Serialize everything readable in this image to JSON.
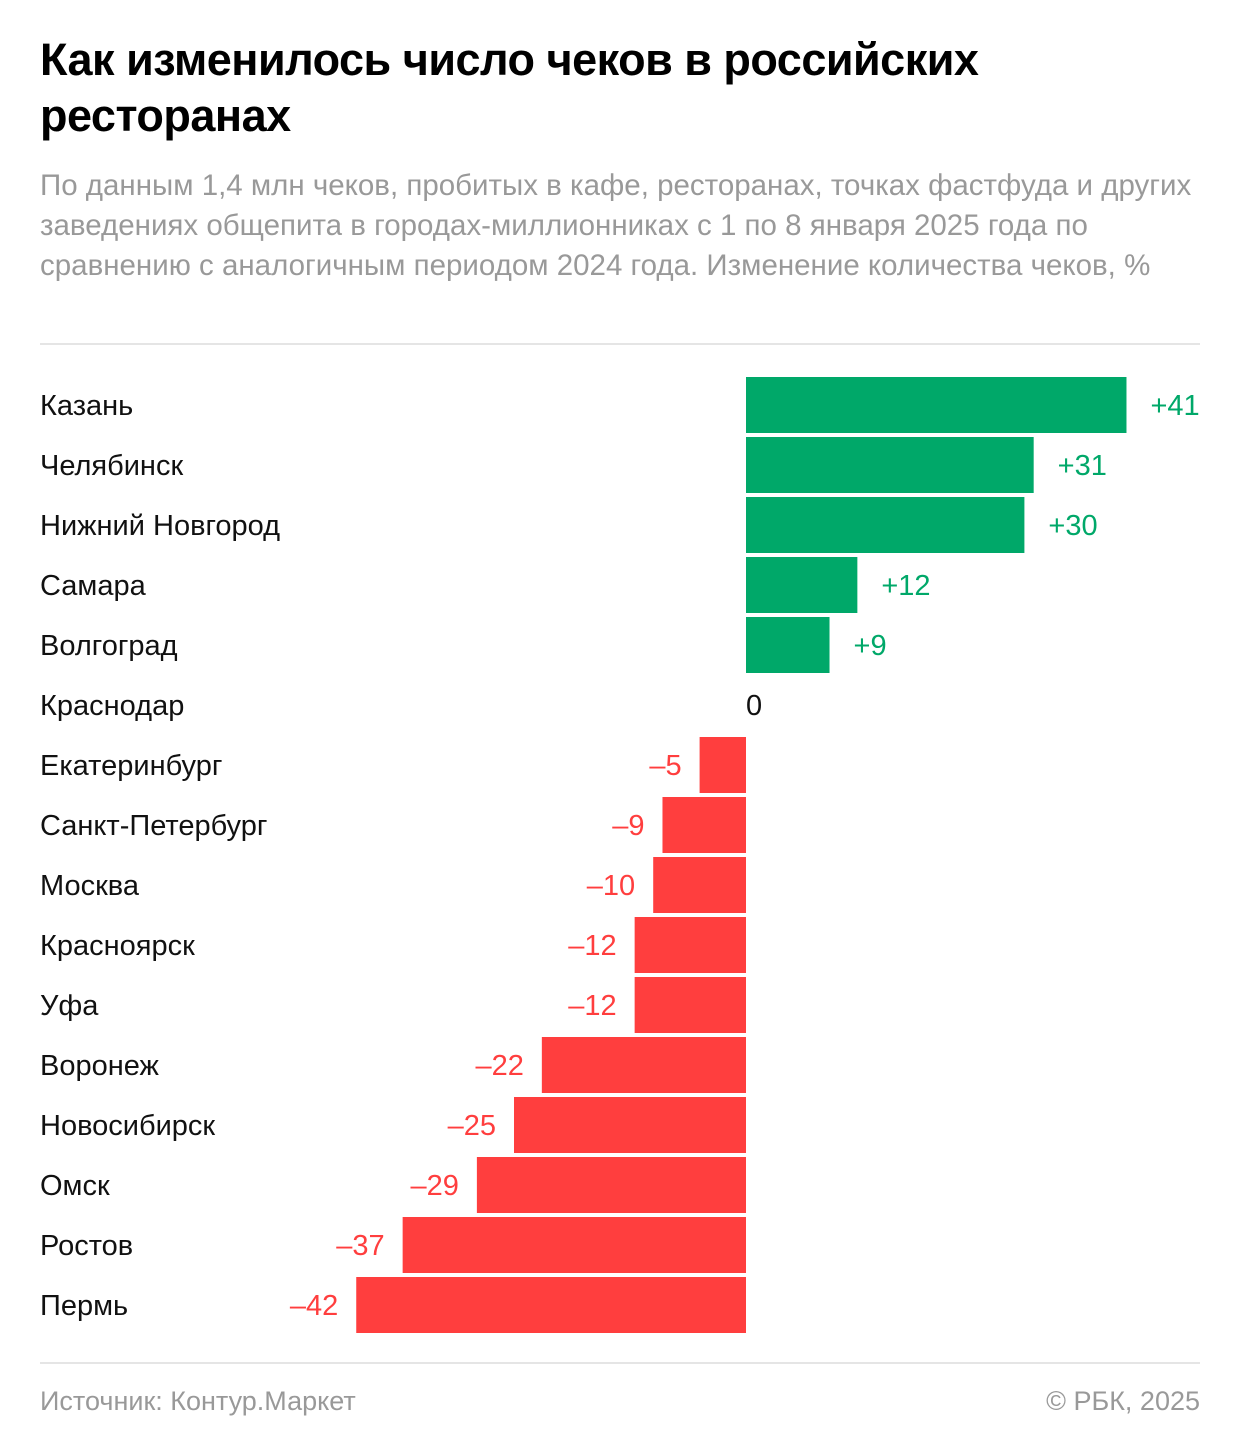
{
  "title": "Как изменилось число чеков в российских ресторанах",
  "subtitle": "По данным 1,4 млн чеков, пробитых в кафе, ресторанах, точках фастфуда и других заведениях общепита в городах-миллионниках с 1 по 8 января 2025 года по сравнению с аналогичным периодом 2024 года. Изменение количества чеков, %",
  "footer": {
    "source": "Источник: Контур.Маркет",
    "copyright": "© РБК, 2025"
  },
  "colors": {
    "positive": "#00a869",
    "negative": "#ff3e3e",
    "zero": "#111111"
  },
  "chart_data": {
    "type": "bar",
    "orientation": "horizontal",
    "categories": [
      "Казань",
      "Челябинск",
      "Нижний Новгород",
      "Самара",
      "Волгоград",
      "Краснодар",
      "Екатеринбург",
      "Санкт-Петербург",
      "Москва",
      "Красноярск",
      "Уфа",
      "Воронеж",
      "Новосибирск",
      "Омск",
      "Ростов",
      "Пермь"
    ],
    "values": [
      41,
      31,
      30,
      12,
      9,
      0,
      -5,
      -9,
      -10,
      -12,
      -12,
      -22,
      -25,
      -29,
      -37,
      -42
    ],
    "value_labels": [
      "+41",
      "+31",
      "+30",
      "+12",
      "+9",
      "0",
      "–5",
      "–9",
      "–10",
      "–12",
      "–12",
      "–22",
      "–25",
      "–29",
      "–37",
      "–42"
    ],
    "xlim": [
      -42,
      41
    ],
    "unit": "%",
    "grid": false,
    "legend": "none"
  }
}
